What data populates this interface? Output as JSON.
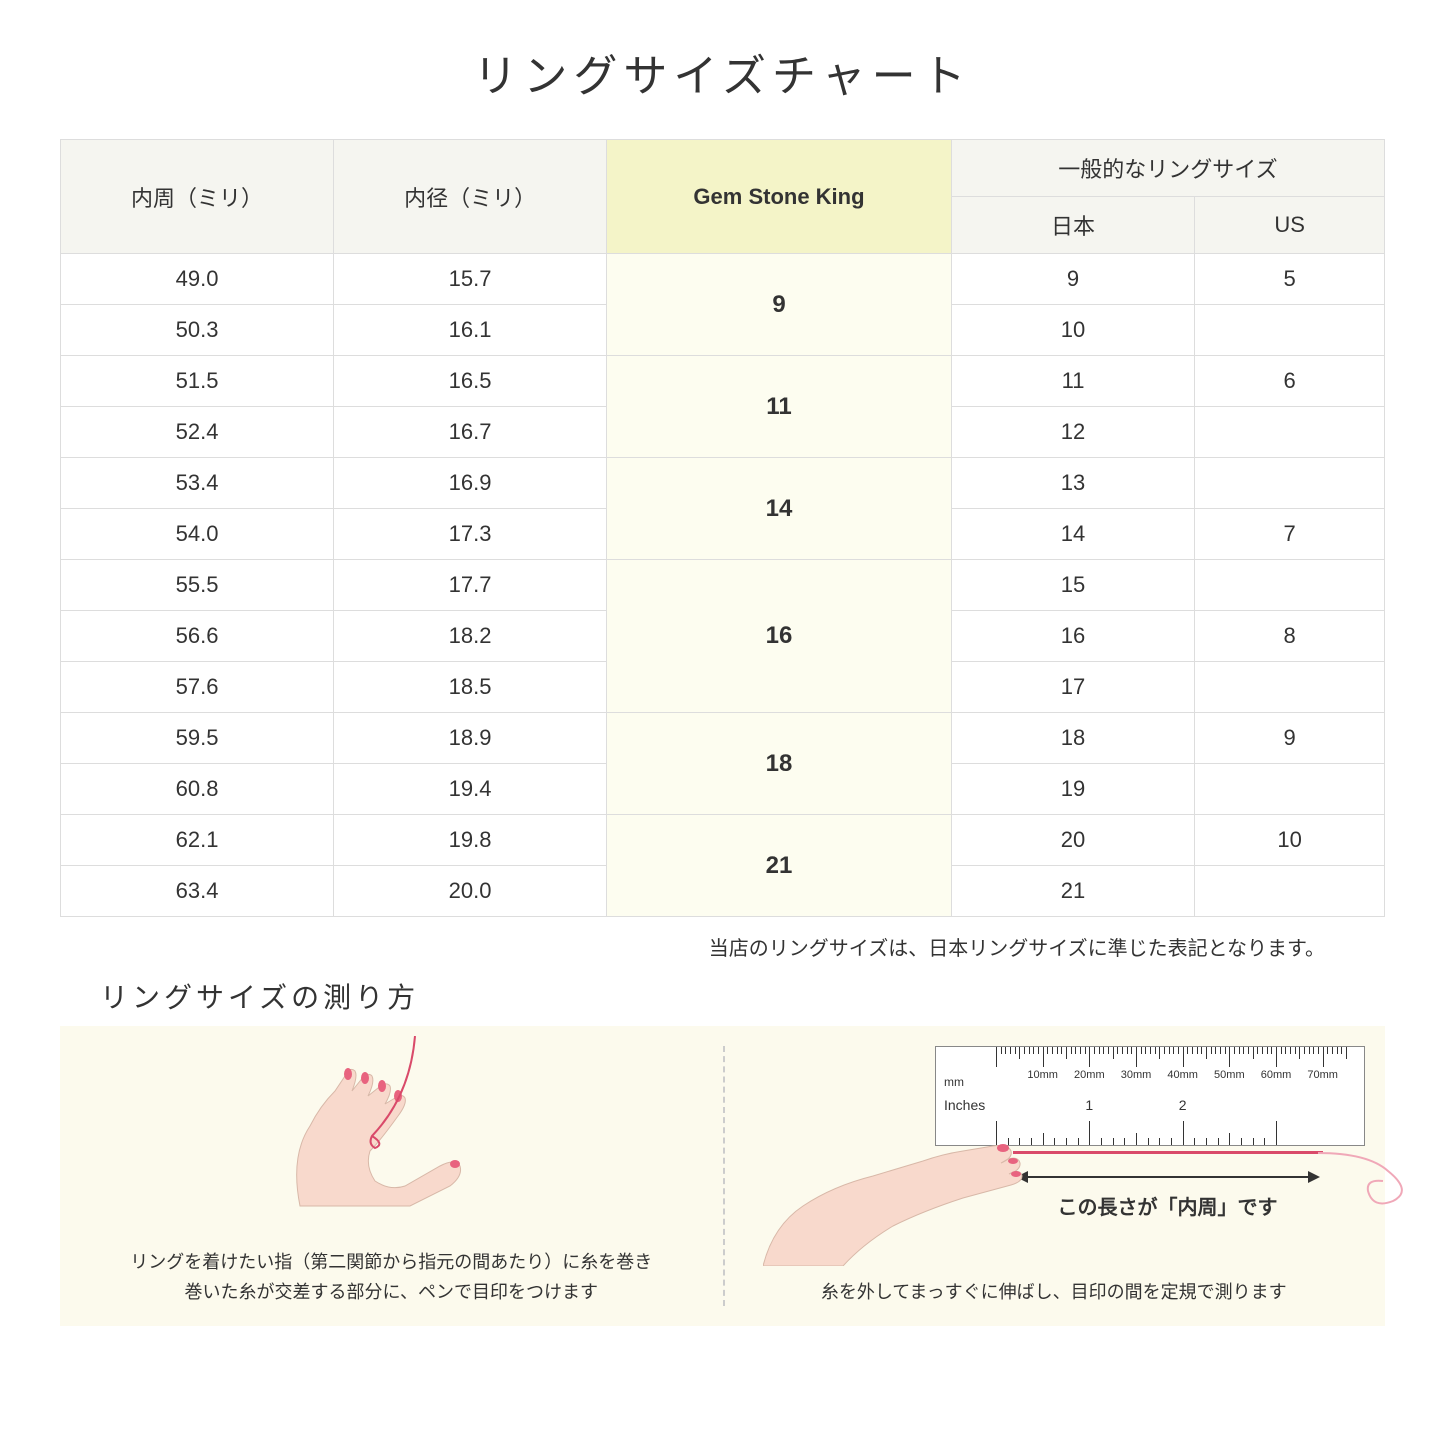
{
  "title": "リングサイズチャート",
  "table": {
    "headers": {
      "circumference": "内周（ミリ）",
      "diameter": "内径（ミリ）",
      "gsk": "Gem Stone King",
      "general": "一般的なリングサイズ",
      "jp": "日本",
      "us": "US"
    },
    "highlight_bg_header": "#f4f4c8",
    "highlight_bg_cell": "#fdfdf0",
    "header_bg": "#f5f5f0",
    "border_color": "#dddddd",
    "groups": [
      {
        "gsk": "9",
        "rows": [
          {
            "c": "49.0",
            "d": "15.7",
            "jp": "9",
            "us": "5"
          },
          {
            "c": "50.3",
            "d": "16.1",
            "jp": "10",
            "us": ""
          }
        ]
      },
      {
        "gsk": "11",
        "rows": [
          {
            "c": "51.5",
            "d": "16.5",
            "jp": "11",
            "us": "6"
          },
          {
            "c": "52.4",
            "d": "16.7",
            "jp": "12",
            "us": ""
          }
        ]
      },
      {
        "gsk": "14",
        "rows": [
          {
            "c": "53.4",
            "d": "16.9",
            "jp": "13",
            "us": ""
          },
          {
            "c": "54.0",
            "d": "17.3",
            "jp": "14",
            "us": "7"
          }
        ]
      },
      {
        "gsk": "16",
        "rows": [
          {
            "c": "55.5",
            "d": "17.7",
            "jp": "15",
            "us": ""
          },
          {
            "c": "56.6",
            "d": "18.2",
            "jp": "16",
            "us": "8"
          },
          {
            "c": "57.6",
            "d": "18.5",
            "jp": "17",
            "us": ""
          }
        ]
      },
      {
        "gsk": "18",
        "rows": [
          {
            "c": "59.5",
            "d": "18.9",
            "jp": "18",
            "us": "9"
          },
          {
            "c": "60.8",
            "d": "19.4",
            "jp": "19",
            "us": ""
          }
        ]
      },
      {
        "gsk": "21",
        "rows": [
          {
            "c": "62.1",
            "d": "19.8",
            "jp": "20",
            "us": "10"
          },
          {
            "c": "63.4",
            "d": "20.0",
            "jp": "21",
            "us": ""
          }
        ]
      }
    ]
  },
  "note": "当店のリングサイズは、日本リングサイズに準じた表記となります。",
  "subtitle": "リングサイズの測り方",
  "howto": {
    "bg": "#fcfaed",
    "left_caption": "リングを着けたい指（第二関節から指元の間あたり）に糸を巻き\n巻いた糸が交差する部分に、ペンで目印をつけます",
    "right_caption": "糸を外してまっすぐに伸ばし、目印の間を定規で測ります",
    "arrow_label": "この長さが「内周」です",
    "ruler": {
      "mm_label": "mm",
      "inches_label": "Inches",
      "mm_ticks": [
        "10mm",
        "20mm",
        "30mm",
        "40mm",
        "50mm",
        "60mm",
        "70mm"
      ],
      "inch_ticks": [
        "1",
        "2"
      ]
    },
    "hand_skin": "#f8d9cc",
    "nail_color": "#e8637f",
    "thread_color": "#d94a6a"
  }
}
